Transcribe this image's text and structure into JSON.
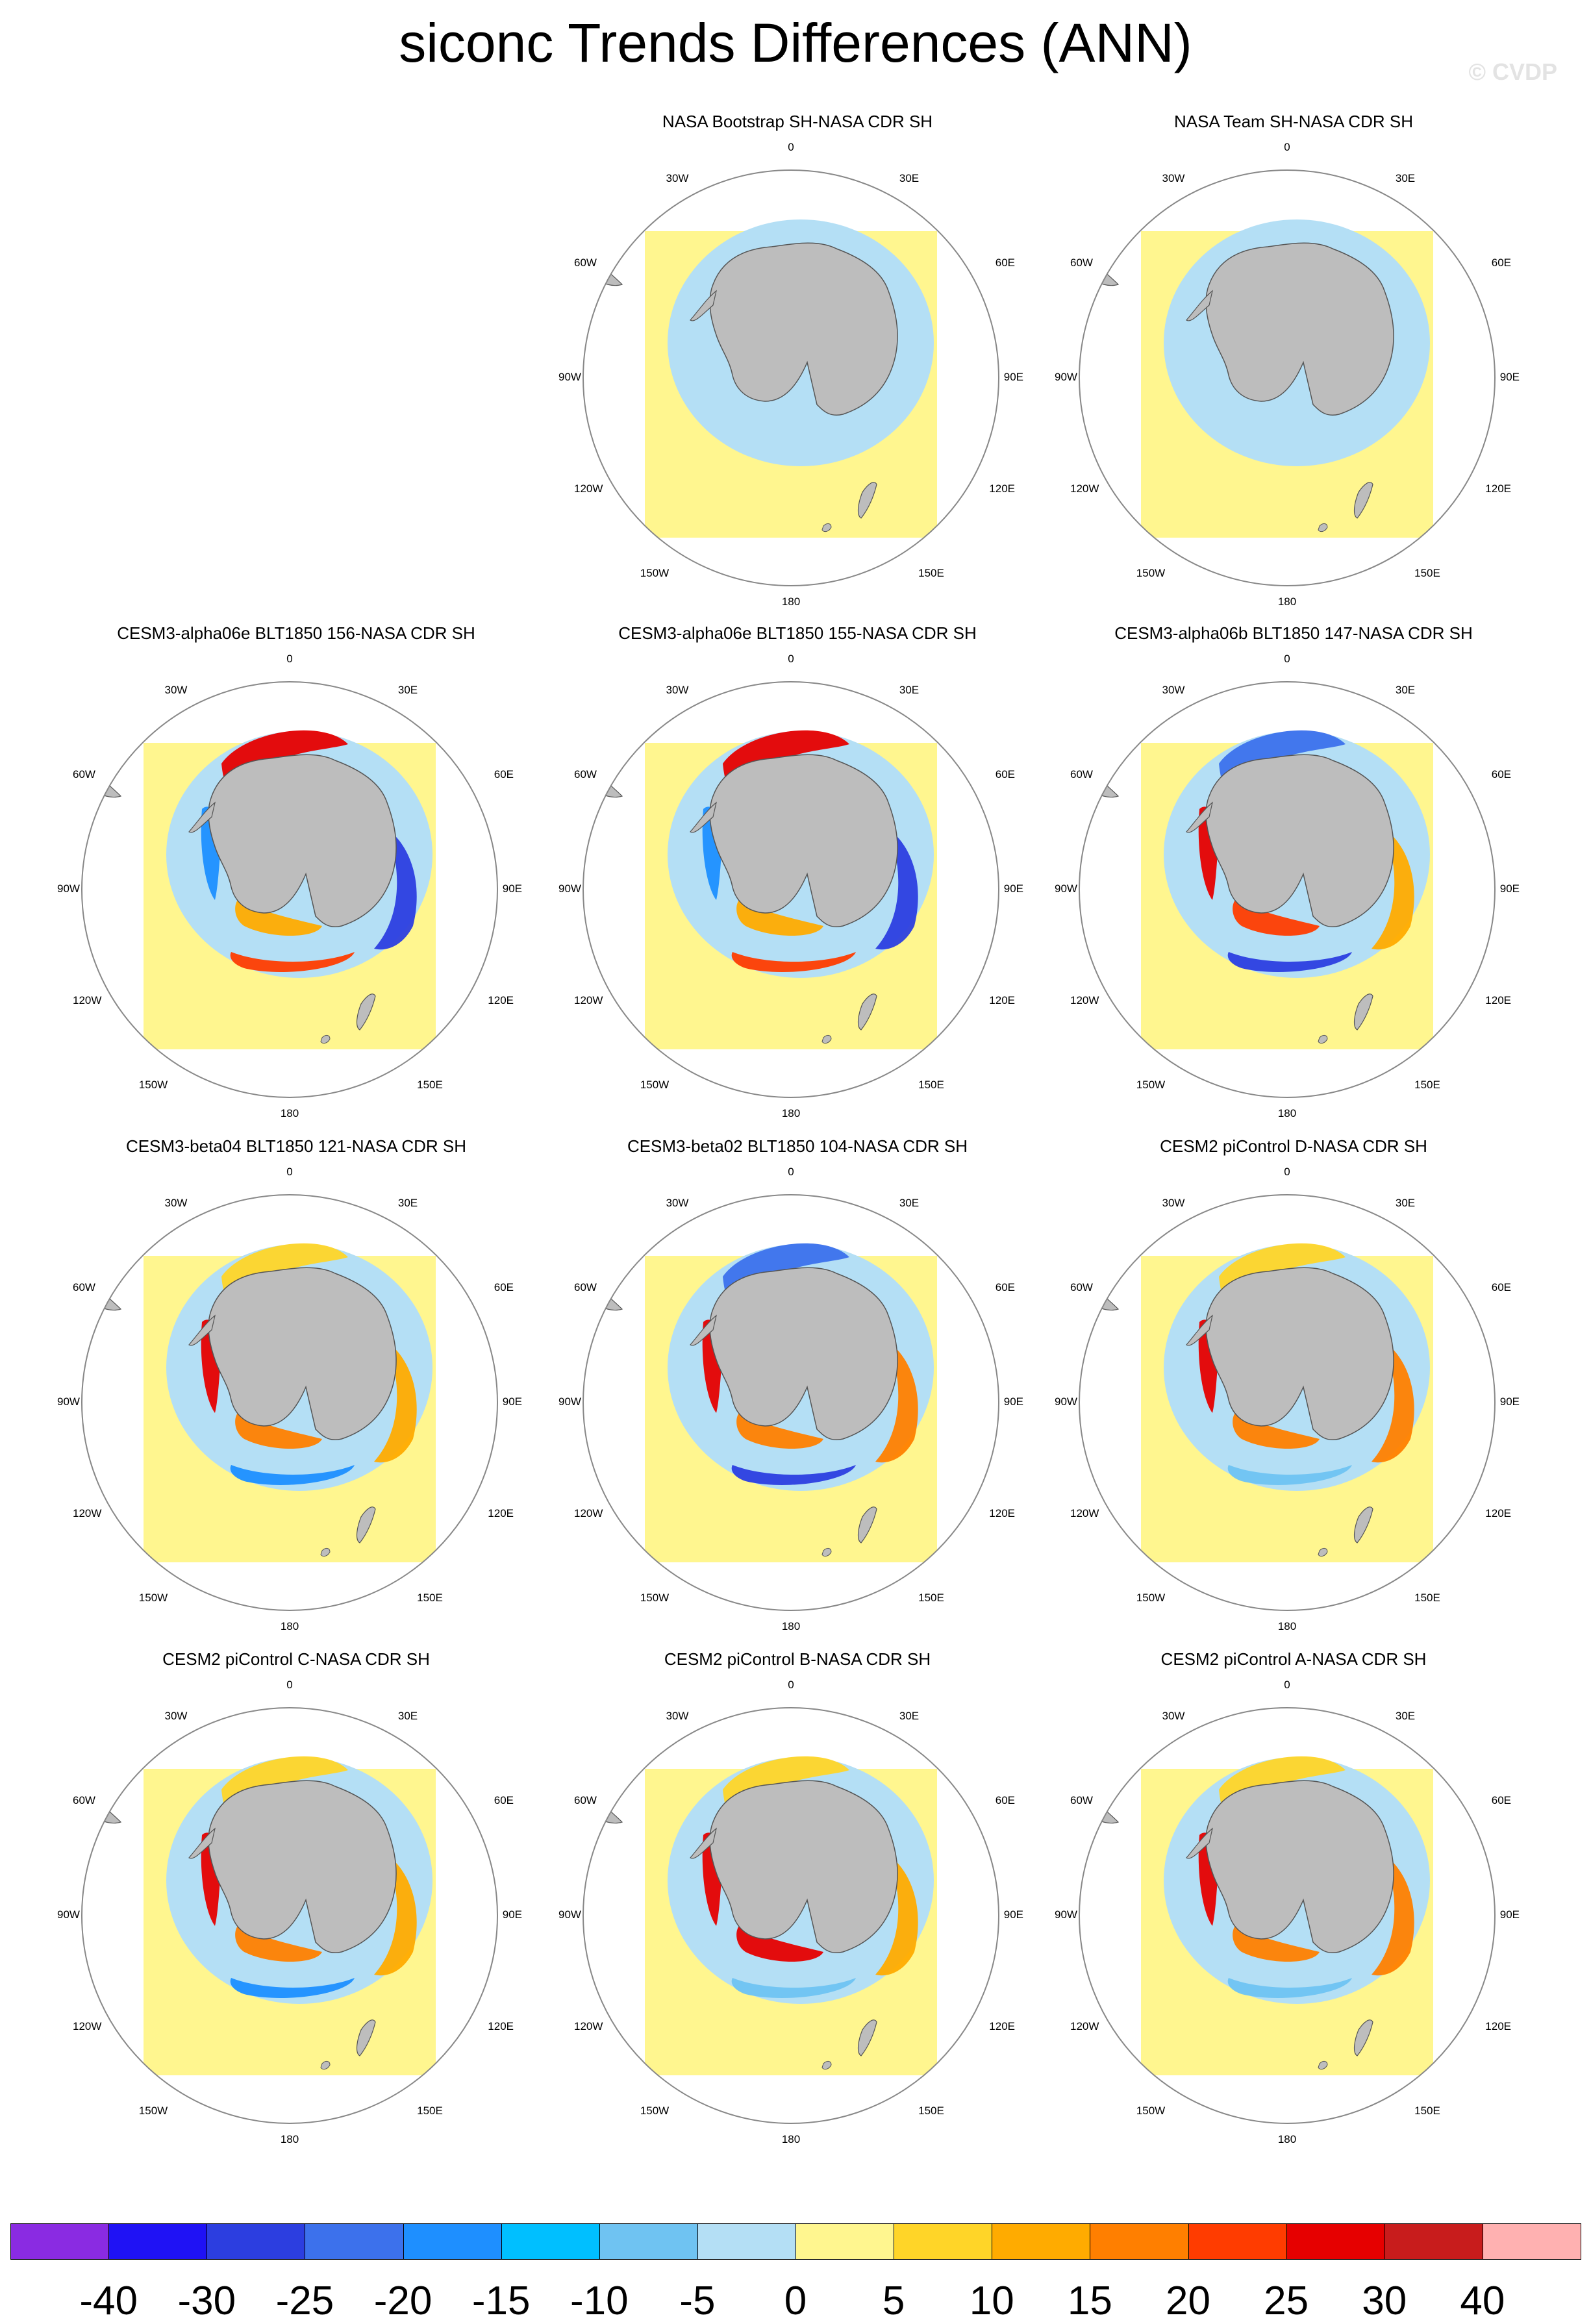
{
  "figure": {
    "title": "siconc Trends Differences (ANN)",
    "watermark": "© CVDP"
  },
  "map_labels": {
    "top": "0",
    "bottom": "180",
    "left": "90W",
    "right": "90E",
    "ul1": "30W",
    "ur1": "30E",
    "ul2": "60W",
    "ur2": "60E",
    "ll1": "120W",
    "lr1": "120E",
    "ll2": "150W",
    "lr2": "150E"
  },
  "colors": {
    "ocean_background": "#fff68f",
    "land": "#bdbdbd",
    "scale": [
      "#8a2be2",
      "#1f12f5",
      "#2c3ee0",
      "#3c71ec",
      "#1e8fff",
      "#00bfff",
      "#6fc3f2",
      "#b4dff5",
      "#fff68f",
      "#ffd528",
      "#ffab00",
      "#ff7f00",
      "#ff3c00",
      "#e60000",
      "#c81c1c",
      "#ffb1b1"
    ]
  },
  "colorbar": {
    "labels": [
      "-40",
      "-30",
      "-25",
      "-20",
      "-15",
      "-10",
      "-5",
      "0",
      "5",
      "10",
      "15",
      "20",
      "25",
      "30",
      "40"
    ]
  },
  "panels": [
    {
      "title": "NASA Bootstrap SH-NASA CDR SH",
      "anomalies": []
    },
    {
      "title": "NASA Team SH-NASA CDR SH",
      "anomalies": []
    },
    {
      "title": "CESM3-alpha06e BLT1850 156-NASA CDR SH",
      "anomalies": [
        {
          "where": "Weddell-Atlantic",
          "color": "#e60000"
        },
        {
          "where": "Bellingshausen",
          "color": "#1e8fff"
        },
        {
          "where": "Ross",
          "color": "#ffab00"
        },
        {
          "where": "Pacific-far",
          "color": "#ff3c00"
        },
        {
          "where": "East-Antarctic",
          "color": "#2c3ee0"
        }
      ]
    },
    {
      "title": "CESM3-alpha06e BLT1850 155-NASA CDR SH",
      "anomalies": [
        {
          "where": "Weddell-Atlantic",
          "color": "#e60000"
        },
        {
          "where": "Bellingshausen",
          "color": "#1e8fff"
        },
        {
          "where": "Ross",
          "color": "#ffab00"
        },
        {
          "where": "Pacific-far",
          "color": "#ff3c00"
        },
        {
          "where": "East-Antarctic",
          "color": "#2c3ee0"
        }
      ]
    },
    {
      "title": "CESM3-alpha06b BLT1850 147-NASA CDR SH",
      "anomalies": [
        {
          "where": "Weddell-Atlantic",
          "color": "#3c71ec"
        },
        {
          "where": "Bellingshausen",
          "color": "#e60000"
        },
        {
          "where": "Ross",
          "color": "#ff3c00"
        },
        {
          "where": "Pacific-far",
          "color": "#2c3ee0"
        },
        {
          "where": "East-Antarctic",
          "color": "#ffab00"
        }
      ]
    },
    {
      "title": "CESM3-beta04 BLT1850 121-NASA CDR SH",
      "anomalies": [
        {
          "where": "Weddell-Atlantic",
          "color": "#ffd528"
        },
        {
          "where": "Bellingshausen",
          "color": "#e60000"
        },
        {
          "where": "Ross",
          "color": "#ff7f00"
        },
        {
          "where": "Pacific-far",
          "color": "#1e8fff"
        },
        {
          "where": "East-Antarctic",
          "color": "#ffab00"
        }
      ]
    },
    {
      "title": "CESM3-beta02 BLT1850 104-NASA CDR SH",
      "anomalies": [
        {
          "where": "Weddell-Atlantic",
          "color": "#3c71ec"
        },
        {
          "where": "Bellingshausen",
          "color": "#e60000"
        },
        {
          "where": "Ross",
          "color": "#ff7f00"
        },
        {
          "where": "Pacific-far",
          "color": "#2c3ee0"
        },
        {
          "where": "East-Antarctic",
          "color": "#ff7f00"
        }
      ]
    },
    {
      "title": "CESM2 piControl D-NASA CDR SH",
      "anomalies": [
        {
          "where": "Weddell-Atlantic",
          "color": "#ffd528"
        },
        {
          "where": "Bellingshausen",
          "color": "#e60000"
        },
        {
          "where": "Ross",
          "color": "#ff7f00"
        },
        {
          "where": "Pacific-far",
          "color": "#6fc3f2"
        },
        {
          "where": "East-Antarctic",
          "color": "#ff7f00"
        }
      ]
    },
    {
      "title": "CESM2 piControl C-NASA CDR SH",
      "anomalies": [
        {
          "where": "Weddell-Atlantic",
          "color": "#ffd528"
        },
        {
          "where": "Bellingshausen",
          "color": "#e60000"
        },
        {
          "where": "Ross",
          "color": "#ff7f00"
        },
        {
          "where": "Pacific-far",
          "color": "#1e8fff"
        },
        {
          "where": "East-Antarctic",
          "color": "#ffab00"
        }
      ]
    },
    {
      "title": "CESM2 piControl B-NASA CDR SH",
      "anomalies": [
        {
          "where": "Weddell-Atlantic",
          "color": "#ffd528"
        },
        {
          "where": "Bellingshausen",
          "color": "#e60000"
        },
        {
          "where": "Ross",
          "color": "#e60000"
        },
        {
          "where": "Pacific-far",
          "color": "#6fc3f2"
        },
        {
          "where": "East-Antarctic",
          "color": "#ffab00"
        }
      ]
    },
    {
      "title": "CESM2 piControl A-NASA CDR SH",
      "anomalies": [
        {
          "where": "Weddell-Atlantic",
          "color": "#ffd528"
        },
        {
          "where": "Bellingshausen",
          "color": "#e60000"
        },
        {
          "where": "Ross",
          "color": "#ff7f00"
        },
        {
          "where": "Pacific-far",
          "color": "#6fc3f2"
        },
        {
          "where": "East-Antarctic",
          "color": "#ff7f00"
        }
      ]
    }
  ]
}
